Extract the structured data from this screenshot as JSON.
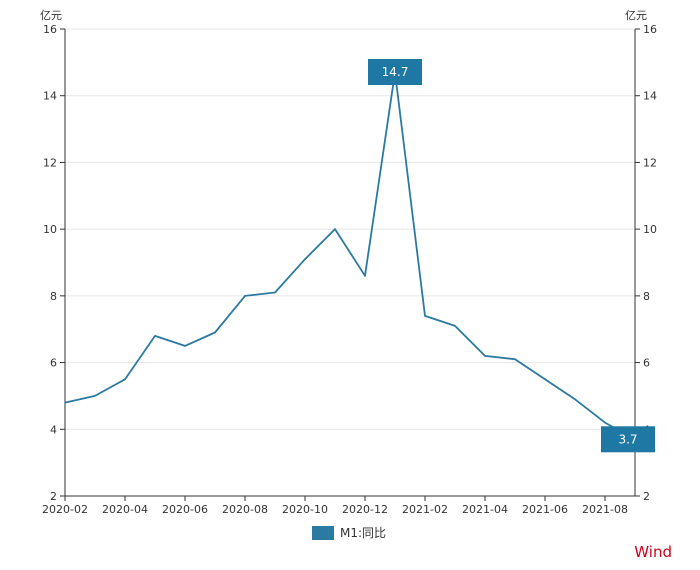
{
  "colors": {
    "line": "#2a7aa1",
    "callout": "#1f78a4",
    "grid": "#e6e6e6",
    "axis": "#333333",
    "brand": "#d0021b"
  },
  "legend": {
    "label": "M1:同比"
  },
  "brand": {
    "text": "Wind"
  },
  "chart_data": {
    "type": "line",
    "left_unit": "亿元",
    "right_unit": "亿元",
    "ylim": [
      2,
      16
    ],
    "yticks": [
      2,
      4,
      6,
      8,
      10,
      12,
      14,
      16
    ],
    "xticks": [
      "2020-02",
      "2020-04",
      "2020-06",
      "2020-08",
      "2020-10",
      "2020-12",
      "2021-02",
      "2021-04",
      "2021-06",
      "2021-08"
    ],
    "grid": true,
    "legend_position": "bottom",
    "series": [
      {
        "name": "M1:同比",
        "x": [
          "2020-02",
          "2020-03",
          "2020-04",
          "2020-05",
          "2020-06",
          "2020-07",
          "2020-08",
          "2020-09",
          "2020-10",
          "2020-11",
          "2020-12",
          "2021-01",
          "2021-02",
          "2021-03",
          "2021-04",
          "2021-05",
          "2021-06",
          "2021-07",
          "2021-08",
          "2021-09"
        ],
        "values": [
          4.8,
          5.0,
          5.5,
          6.8,
          6.5,
          6.9,
          8.0,
          8.1,
          9.1,
          10.0,
          8.6,
          14.7,
          7.4,
          7.1,
          6.2,
          6.1,
          5.5,
          4.9,
          4.2,
          3.7
        ]
      }
    ],
    "annotations": [
      {
        "x": "2021-01",
        "label": "14.7"
      },
      {
        "x": "2021-09",
        "label": "3.7"
      }
    ]
  }
}
